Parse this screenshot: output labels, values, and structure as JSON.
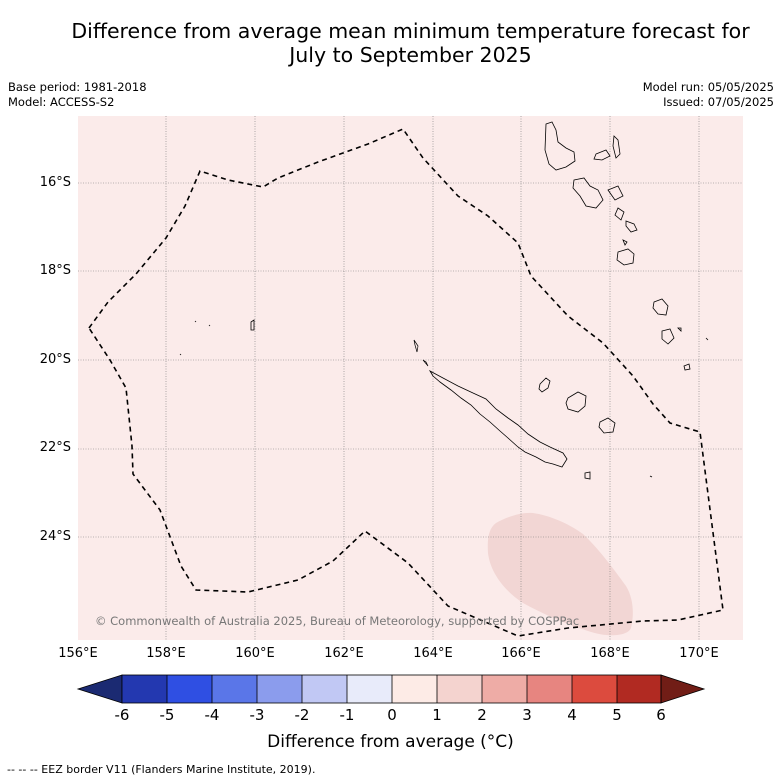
{
  "title": {
    "line1": "Difference from average mean minimum temperature forecast for",
    "line2": "July to September 2025"
  },
  "meta": {
    "base_period": "Base period: 1981-2018",
    "model": "Model: ACCESS-S2",
    "model_run": "Model run: 05/05/2025",
    "issued": "Issued: 07/05/2025"
  },
  "map": {
    "background_color": "#fbebea",
    "anomaly_patch_color": "#f2d6d4",
    "lat_labels": [
      "16°S",
      "18°S",
      "20°S",
      "22°S",
      "24°S"
    ],
    "lon_labels": [
      "156°E",
      "158°E",
      "160°E",
      "162°E",
      "164°E",
      "166°E",
      "168°E",
      "170°E"
    ],
    "copyright": "© Commonwealth of Australia 2025, Bureau of Meteorology, supported by COSPPac"
  },
  "colorbar": {
    "ticks": [
      "-6",
      "-5",
      "-4",
      "-3",
      "-2",
      "-1",
      "0",
      "1",
      "2",
      "3",
      "4",
      "5",
      "6"
    ],
    "colors": [
      "#1b2a72",
      "#2338b0",
      "#2f4fe3",
      "#5a76e8",
      "#8b9ced",
      "#c1c8f4",
      "#e8ebfa",
      "#fdebe6",
      "#f4d3cf",
      "#eeaca6",
      "#e78580",
      "#dc4b3e",
      "#b12a22",
      "#711d16"
    ],
    "label": "Difference from average (°C)"
  },
  "footnote": "--  --  -- EEZ border V11 (Flanders Marine Institute, 2019)."
}
